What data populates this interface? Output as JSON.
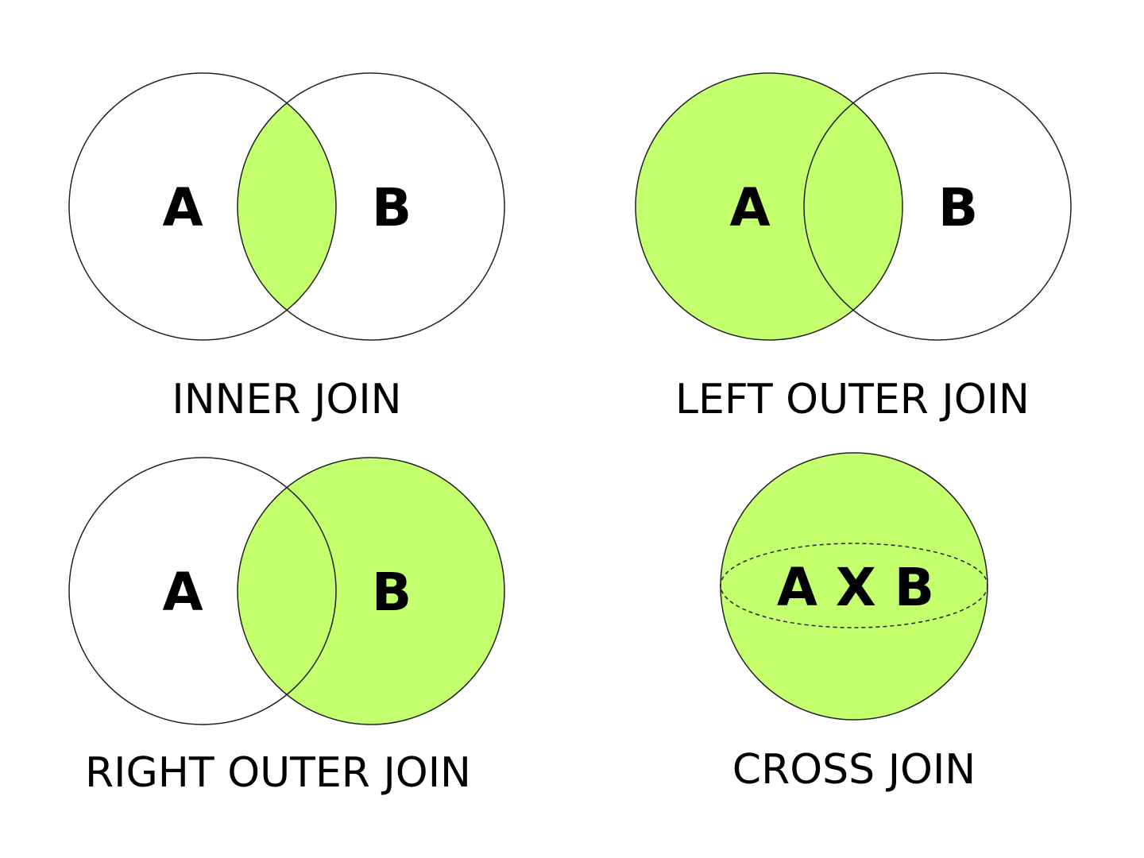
{
  "colors": {
    "highlight": "#c4ff6e",
    "outline": "#222222",
    "background": "#ffffff",
    "text": "#000000"
  },
  "panels": [
    {
      "id": "inner",
      "caption": "INNER JOIN",
      "left_label": "A",
      "right_label": "B",
      "highlight": "intersection"
    },
    {
      "id": "left-outer",
      "caption": "LEFT OUTER JOIN",
      "left_label": "A",
      "right_label": "B",
      "highlight": "left-set"
    },
    {
      "id": "right-outer",
      "caption": "RIGHT OUTER JOIN",
      "left_label": "A",
      "right_label": "B",
      "highlight": "right-set"
    },
    {
      "id": "cross",
      "caption": "CROSS JOIN",
      "center_label": "A X B",
      "highlight": "entire-circle"
    }
  ]
}
